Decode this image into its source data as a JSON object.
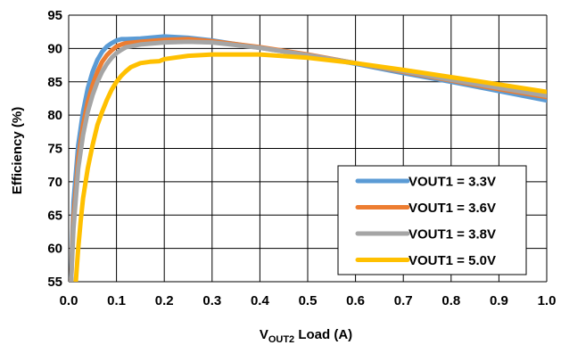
{
  "chart_data": {
    "type": "line",
    "title": "",
    "xlabel": {
      "main": "V",
      "sub": "OUT2",
      "rest": " Load (A)"
    },
    "ylabel": "Efficiency (%)",
    "xlim": [
      0,
      1.0
    ],
    "ylim": [
      55,
      95
    ],
    "xticks": [
      "0.0",
      "0.1",
      "0.2",
      "0.3",
      "0.4",
      "0.5",
      "0.6",
      "0.7",
      "0.8",
      "0.9",
      "1.0"
    ],
    "yticks": [
      "55",
      "60",
      "65",
      "70",
      "75",
      "80",
      "85",
      "90",
      "95"
    ],
    "grid": true,
    "legend_position": "bottom-right",
    "series": [
      {
        "name": "VOUT1 = 3.3V",
        "color": "#5B9BD5",
        "x": [
          0.005,
          0.01,
          0.02,
          0.03,
          0.04,
          0.05,
          0.06,
          0.07,
          0.08,
          0.09,
          0.1,
          0.11,
          0.12,
          0.15,
          0.2,
          0.25,
          0.3,
          0.4,
          0.5,
          0.6,
          0.7,
          0.8,
          0.9,
          1.0
        ],
        "y": [
          55.5,
          67,
          75.5,
          80.5,
          84,
          86.5,
          88.3,
          89.5,
          90.3,
          90.8,
          91.2,
          91.4,
          91.4,
          91.5,
          91.8,
          91.6,
          91.2,
          90.1,
          89.0,
          87.7,
          86.3,
          85.0,
          83.6,
          82.2
        ]
      },
      {
        "name": "VOUT1 = 3.6V",
        "color": "#ED7D31",
        "x": [
          0.005,
          0.01,
          0.02,
          0.03,
          0.04,
          0.05,
          0.06,
          0.07,
          0.08,
          0.09,
          0.1,
          0.11,
          0.12,
          0.15,
          0.2,
          0.25,
          0.3,
          0.4,
          0.5,
          0.6,
          0.7,
          0.8,
          0.9,
          1.0
        ],
        "y": [
          55,
          64.5,
          73.5,
          78.5,
          82,
          84.5,
          86.5,
          88,
          89,
          89.7,
          90.3,
          90.6,
          90.8,
          91.0,
          91.3,
          91.4,
          91.1,
          90.2,
          89.1,
          87.8,
          86.5,
          85.2,
          83.9,
          82.7
        ]
      },
      {
        "name": "VOUT1 = 3.8V",
        "color": "#A5A5A5",
        "x": [
          0.005,
          0.01,
          0.02,
          0.03,
          0.04,
          0.05,
          0.06,
          0.07,
          0.08,
          0.09,
          0.1,
          0.11,
          0.12,
          0.15,
          0.2,
          0.25,
          0.3,
          0.4,
          0.5,
          0.6,
          0.7,
          0.8,
          0.9,
          1.0
        ],
        "y": [
          55,
          63,
          72,
          77,
          80.5,
          83,
          85,
          86.5,
          87.7,
          88.6,
          89.3,
          89.8,
          90.2,
          90.6,
          90.9,
          91.0,
          90.9,
          90.1,
          89.0,
          87.8,
          86.6,
          85.3,
          84.1,
          82.9
        ]
      },
      {
        "name": "VOUT1 = 5.0V",
        "color": "#FFC000",
        "x": [
          0.015,
          0.02,
          0.025,
          0.03,
          0.04,
          0.05,
          0.06,
          0.07,
          0.08,
          0.09,
          0.1,
          0.11,
          0.12,
          0.13,
          0.15,
          0.17,
          0.19,
          0.2,
          0.25,
          0.3,
          0.4,
          0.5,
          0.6,
          0.7,
          0.8,
          0.9,
          1.0
        ],
        "y": [
          55,
          60,
          64,
          67.5,
          72,
          75.5,
          78.5,
          80.5,
          82.3,
          83.8,
          85,
          85.9,
          86.6,
          87.2,
          87.8,
          88.0,
          88.1,
          88.4,
          88.9,
          89.1,
          89.1,
          88.6,
          87.8,
          86.8,
          85.7,
          84.6,
          83.5
        ]
      }
    ]
  }
}
